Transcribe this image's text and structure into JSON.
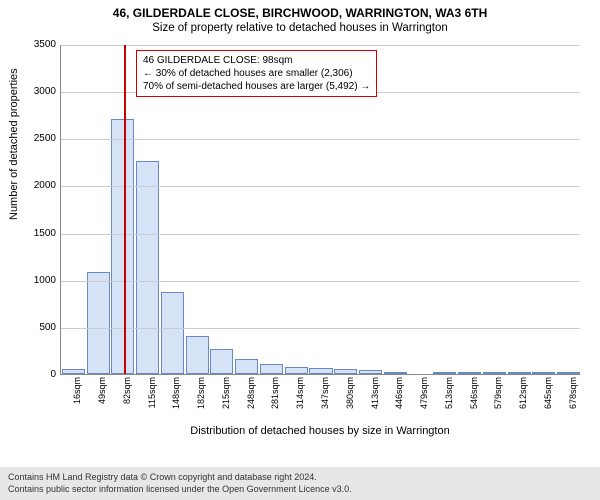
{
  "title": "46, GILDERDALE CLOSE, BIRCHWOOD, WARRINGTON, WA3 6TH",
  "subtitle": "Size of property relative to detached houses in Warrington",
  "ylabel": "Number of detached properties",
  "xlabel": "Distribution of detached houses by size in Warrington",
  "chart": {
    "type": "bar",
    "ylim": [
      0,
      3500
    ],
    "ytick_step": 500,
    "bar_fill": "#d6e2f5",
    "bar_border": "#6a88c4",
    "grid_color": "#cccccc",
    "axis_color": "#888888",
    "background_color": "#ffffff",
    "refline_color": "#cc0000",
    "refline_x": 98,
    "x_min": 16,
    "x_max": 694,
    "categories": [
      "16sqm",
      "49sqm",
      "82sqm",
      "115sqm",
      "148sqm",
      "182sqm",
      "215sqm",
      "248sqm",
      "281sqm",
      "314sqm",
      "347sqm",
      "380sqm",
      "413sqm",
      "446sqm",
      "479sqm",
      "513sqm",
      "546sqm",
      "579sqm",
      "612sqm",
      "645sqm",
      "678sqm"
    ],
    "values": [
      55,
      1080,
      2700,
      2260,
      870,
      400,
      270,
      155,
      110,
      75,
      60,
      55,
      45,
      12,
      0,
      8,
      5,
      4,
      3,
      2,
      2
    ]
  },
  "info": {
    "line1": "46 GILDERDALE CLOSE: 98sqm",
    "line2": "← 30% of detached houses are smaller (2,306)",
    "line3": "70% of semi-detached houses are larger (5,492) →"
  },
  "footer": {
    "line1": "Contains HM Land Registry data © Crown copyright and database right 2024.",
    "line2": "Contains public sector information licensed under the Open Government Licence v3.0."
  }
}
